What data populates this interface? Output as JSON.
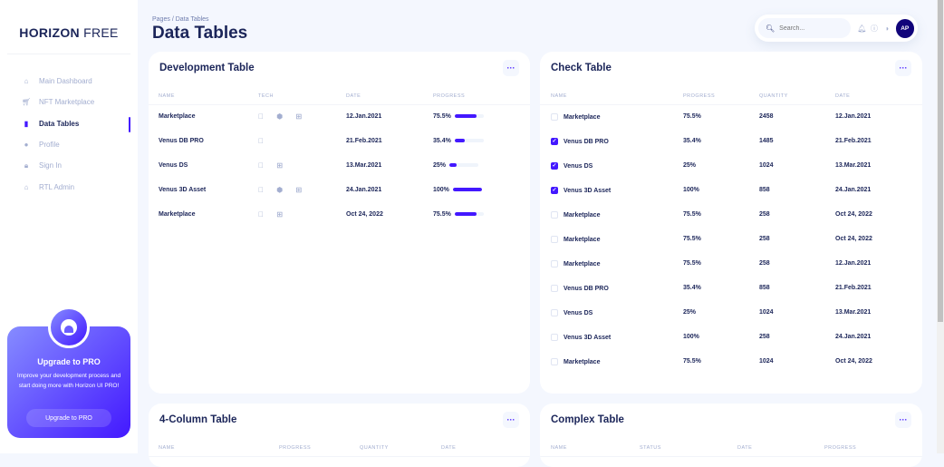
{
  "sidebar": {
    "brand_bold": "HORIZON",
    "brand_light": "FREE",
    "items": [
      {
        "label": "Main Dashboard",
        "icon": "home-icon"
      },
      {
        "label": "NFT Marketplace",
        "icon": "cart-icon"
      },
      {
        "label": "Data Tables",
        "icon": "bar-chart-icon"
      },
      {
        "label": "Profile",
        "icon": "person-icon"
      },
      {
        "label": "Sign In",
        "icon": "lock-icon"
      },
      {
        "label": "RTL Admin",
        "icon": "home-icon"
      }
    ],
    "promo": {
      "title": "Upgrade to PRO",
      "text": "Improve your development process and start doing more with Horizon UI PRO!",
      "button": "Upgrade to PRO"
    }
  },
  "header": {
    "breadcrumb_root": "Pages",
    "breadcrumb_sep": "/",
    "breadcrumb_current": "Data Tables",
    "title": "Data Tables",
    "search_placeholder": "Search...",
    "avatar": "AP"
  },
  "dev_table": {
    "title": "Development Table",
    "columns": [
      "NAME",
      "TECH",
      "DATE",
      "PROGRESS"
    ],
    "rows": [
      {
        "name": "Marketplace",
        "tech": " ⬢ ⊞",
        "date": "12.Jan.2021",
        "progress": "75.5%",
        "value": 75.5
      },
      {
        "name": "Venus DB PRO",
        "tech": "",
        "date": "21.Feb.2021",
        "progress": "35.4%",
        "value": 35.4
      },
      {
        "name": "Venus DS",
        "tech": " ⊞",
        "date": "13.Mar.2021",
        "progress": "25%",
        "value": 25
      },
      {
        "name": "Venus 3D Asset",
        "tech": " ⬢ ⊞",
        "date": "24.Jan.2021",
        "progress": "100%",
        "value": 100
      },
      {
        "name": "Marketplace",
        "tech": " ⊞",
        "date": "Oct 24, 2022",
        "progress": "75.5%",
        "value": 75.5
      }
    ]
  },
  "check_table": {
    "title": "Check Table",
    "columns": [
      "NAME",
      "PROGRESS",
      "QUANTITY",
      "DATE"
    ],
    "rows": [
      {
        "name": "Marketplace",
        "checked": false,
        "progress": "75.5%",
        "quantity": "2458",
        "date": "12.Jan.2021"
      },
      {
        "name": "Venus DB PRO",
        "checked": true,
        "progress": "35.4%",
        "quantity": "1485",
        "date": "21.Feb.2021"
      },
      {
        "name": "Venus DS",
        "checked": true,
        "progress": "25%",
        "quantity": "1024",
        "date": "13.Mar.2021"
      },
      {
        "name": "Venus 3D Asset",
        "checked": true,
        "progress": "100%",
        "quantity": "858",
        "date": "24.Jan.2021"
      },
      {
        "name": "Marketplace",
        "checked": false,
        "progress": "75.5%",
        "quantity": "258",
        "date": "Oct 24, 2022"
      },
      {
        "name": "Marketplace",
        "checked": false,
        "progress": "75.5%",
        "quantity": "258",
        "date": "Oct 24, 2022"
      },
      {
        "name": "Marketplace",
        "checked": false,
        "progress": "75.5%",
        "quantity": "258",
        "date": "12.Jan.2021"
      },
      {
        "name": "Venus DB PRO",
        "checked": false,
        "progress": "35.4%",
        "quantity": "858",
        "date": "21.Feb.2021"
      },
      {
        "name": "Venus DS",
        "checked": false,
        "progress": "25%",
        "quantity": "1024",
        "date": "13.Mar.2021"
      },
      {
        "name": "Venus 3D Asset",
        "checked": false,
        "progress": "100%",
        "quantity": "258",
        "date": "24.Jan.2021"
      },
      {
        "name": "Marketplace",
        "checked": false,
        "progress": "75.5%",
        "quantity": "1024",
        "date": "Oct 24, 2022"
      }
    ]
  },
  "four_col_table": {
    "title": "4-Column Table",
    "columns": [
      "NAME",
      "PROGRESS",
      "QUANTITY",
      "DATE"
    ]
  },
  "complex_table": {
    "title": "Complex Table",
    "columns": [
      "NAME",
      "STATUS",
      "DATE",
      "PROGRESS"
    ]
  },
  "colors": {
    "accent": "#4318ff",
    "text": "#1b2559",
    "muted": "#a3aed0",
    "bg": "#f4f7fe"
  }
}
